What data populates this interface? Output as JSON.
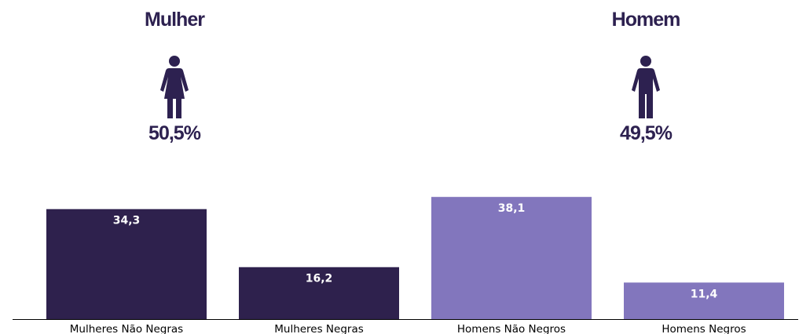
{
  "panels": [
    {
      "title": "Mulher",
      "percent": "50,5%",
      "icon": "female-person-icon",
      "color": "#2d2150"
    },
    {
      "title": "Homem",
      "percent": "49,5%",
      "icon": "male-person-icon",
      "color": "#2d2150"
    }
  ],
  "chart_data": {
    "type": "bar",
    "categories": [
      "Mulheres Não Negras",
      "Mulheres Negras",
      "Homens Não Negros",
      "Homens Negros"
    ],
    "values": [
      34.3,
      16.2,
      38.1,
      11.4
    ],
    "value_labels": [
      "34,3",
      "16,2",
      "38,1",
      "11,4"
    ],
    "colors": [
      "#2e214d",
      "#2e214d",
      "#8276bd",
      "#8276bd"
    ],
    "ylim": [
      0,
      40
    ],
    "grid": false,
    "legend": "none",
    "axis_color": "#000000"
  }
}
